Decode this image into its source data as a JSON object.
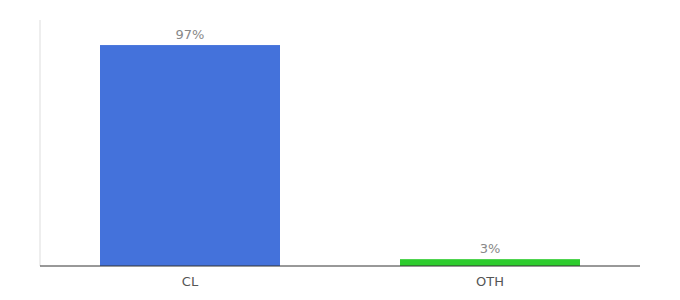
{
  "chart_data": {
    "type": "bar",
    "categories": [
      "CL",
      "OTH"
    ],
    "values": [
      97,
      3
    ],
    "value_labels": [
      "97%",
      "3%"
    ],
    "colors": [
      "#4472db",
      "#2ecc2e"
    ],
    "ylim": [
      0,
      108
    ],
    "data_labels": true,
    "tick_labels": "x"
  }
}
